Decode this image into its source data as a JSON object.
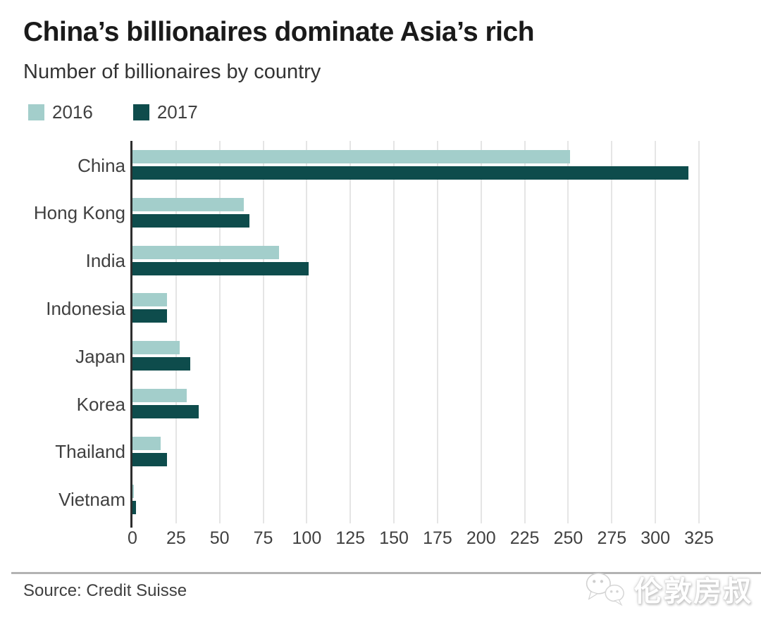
{
  "header": {
    "title": "China’s billionaires dominate Asia’s rich",
    "subtitle": "Number of billionaires by country"
  },
  "chart_data": {
    "type": "bar",
    "orientation": "horizontal",
    "title": "China’s billionaires dominate Asia’s rich",
    "subtitle": "Number of billionaires by country",
    "categories": [
      "China",
      "Hong Kong",
      "India",
      "Indonesia",
      "Japan",
      "Korea",
      "Thailand",
      "Vietnam"
    ],
    "series": [
      {
        "name": "2016",
        "color": "#a3cecb",
        "values": [
          251,
          64,
          84,
          20,
          27,
          31,
          16,
          1
        ]
      },
      {
        "name": "2017",
        "color": "#0e4c4c",
        "values": [
          319,
          67,
          101,
          20,
          33,
          38,
          20,
          2
        ]
      }
    ],
    "xlim": [
      0,
      325
    ],
    "xticks": [
      0,
      25,
      50,
      75,
      100,
      125,
      150,
      175,
      200,
      225,
      250,
      275,
      300,
      325
    ],
    "grid": true,
    "legend_position": "top-left"
  },
  "footer": {
    "source": "Source: Credit Suisse"
  },
  "watermark": {
    "text": "伦敦房叔",
    "icon": "wechat-icon"
  }
}
